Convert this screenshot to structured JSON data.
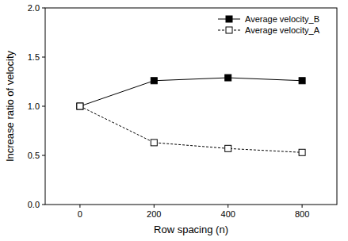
{
  "chart_data": {
    "type": "line",
    "x_label": "Row spacing (n)",
    "y_label": "Increase ratio of velocity",
    "categories": [
      "0",
      "200",
      "400",
      "800"
    ],
    "series": [
      {
        "name": "Average velocity_B",
        "color": "#000000",
        "marker": "filled-square",
        "line_style": "solid",
        "values": [
          1.0,
          1.26,
          1.29,
          1.26
        ]
      },
      {
        "name": "Average velocity_A",
        "color": "#000000",
        "marker": "open-square",
        "line_style": "dashed",
        "values": [
          1.0,
          0.63,
          0.57,
          0.53
        ]
      }
    ],
    "ylim": [
      0,
      2
    ],
    "yticks": [
      {
        "value": 0,
        "label": "0.0"
      },
      {
        "value": 0.5,
        "label": "0.5"
      },
      {
        "value": 1,
        "label": "1.0"
      },
      {
        "value": 1.5,
        "label": "1.5"
      },
      {
        "value": 2,
        "label": "2.0"
      }
    ],
    "legend": "upper-right",
    "grid": false
  }
}
